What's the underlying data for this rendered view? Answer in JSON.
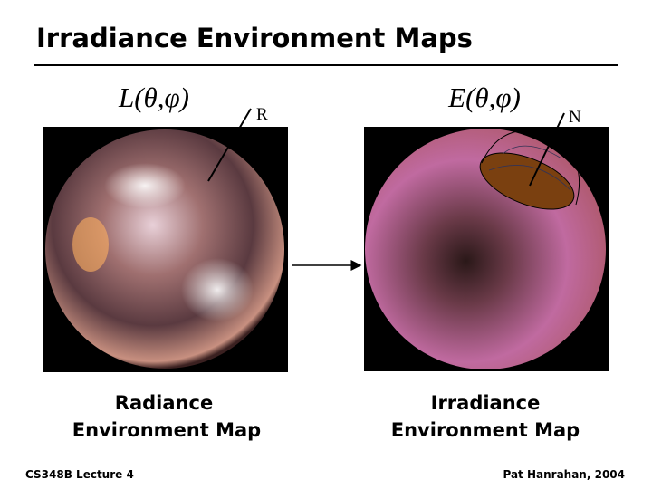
{
  "header": {
    "title": "Irradiance Environment Maps"
  },
  "left": {
    "formula": "L(θ,φ)",
    "vector_label": "R",
    "caption": [
      "Radiance",
      "Environment Map"
    ]
  },
  "right": {
    "formula": "E(θ,φ)",
    "vector_label": "N",
    "caption": [
      "Irradiance",
      "Environment Map"
    ]
  },
  "footer": {
    "left": "CS348B Lecture 4",
    "right": "Pat Hanrahan, 2004"
  }
}
